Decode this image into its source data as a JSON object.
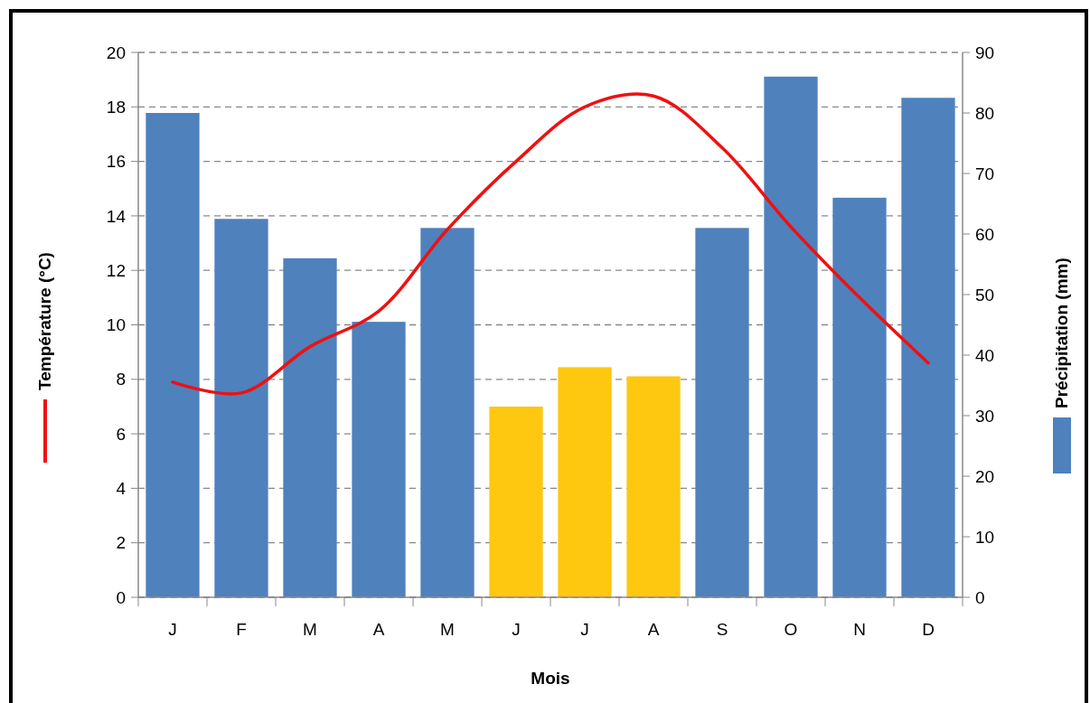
{
  "chart_data": {
    "type": "bar",
    "xlabel": "Mois",
    "categories": [
      "J",
      "F",
      "M",
      "A",
      "M",
      "J",
      "J",
      "A",
      "S",
      "O",
      "N",
      "D"
    ],
    "series": [
      {
        "axis": "y2",
        "color": "#4f81bd",
        "colors": [
          "#4f81bd",
          "#4f81bd",
          "#4f81bd",
          "#4f81bd",
          "#4f81bd",
          "#fec810",
          "#fec810",
          "#fec810",
          "#4f81bd",
          "#4f81bd",
          "#4f81bd",
          "#4f81bd"
        ],
        "values": [
          80,
          62.5,
          56,
          45.5,
          61,
          31.5,
          38,
          36.5,
          61,
          86,
          66,
          82.5
        ]
      },
      {
        "type": "line",
        "axis": "y",
        "color": "#f01010",
        "values": [
          7.9,
          7.5,
          9.2,
          10.5,
          13.5,
          16.0,
          18.0,
          18.4,
          16.5,
          13.6,
          11.0,
          8.6
        ]
      }
    ],
    "ylim": [
      0,
      20
    ],
    "yticks": [
      0,
      2,
      4,
      6,
      8,
      10,
      12,
      14,
      16,
      18,
      20
    ],
    "y2lim": [
      0,
      90
    ],
    "y2ticks": [
      0,
      10,
      20,
      30,
      40,
      50,
      60,
      70,
      80,
      90
    ],
    "ylabel": "Température (°C)",
    "y2label": "Précipitation (mm)",
    "grid": "y",
    "marker": "none",
    "line_style": "solid"
  }
}
